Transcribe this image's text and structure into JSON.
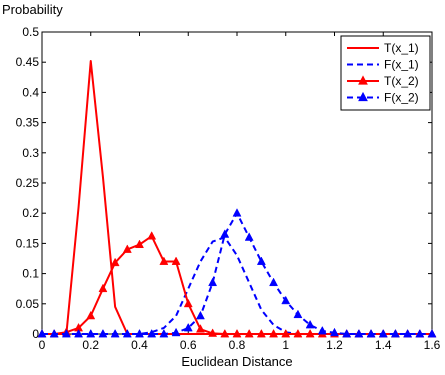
{
  "chart_data": {
    "type": "line",
    "title": "",
    "xlabel": "Euclidean Distance",
    "ylabel": "Probability",
    "xlim": [
      0,
      1.6
    ],
    "ylim": [
      0,
      0.5
    ],
    "xticks": [
      0,
      0.2,
      0.4,
      0.6,
      0.8,
      1,
      1.2,
      1.4,
      1.6
    ],
    "xtick_labels": [
      "0",
      "0.2",
      "0.4",
      "0.6",
      "0.8",
      "1",
      "1.2",
      "1.4",
      "1.6"
    ],
    "yticks": [
      0,
      0.05,
      0.1,
      0.15,
      0.2,
      0.25,
      0.3,
      0.35,
      0.4,
      0.45,
      0.5
    ],
    "ytick_labels": [
      "0",
      "0.05",
      "0.1",
      "0.15",
      "0.2",
      "0.25",
      "0.3",
      "0.35",
      "0.4",
      "0.45",
      "0.5"
    ],
    "grid": false,
    "legend_position": "top-right",
    "series": [
      {
        "name": "T(x_1)",
        "color": "#ff0000",
        "style": "solid",
        "marker": "none",
        "x": [
          0,
          0.05,
          0.1,
          0.15,
          0.2,
          0.25,
          0.3,
          0.35,
          0.4,
          0.45,
          0.5,
          0.55,
          0.6,
          0.65,
          0.7,
          0.75,
          0.8,
          0.85,
          0.9,
          0.95,
          1,
          1.05,
          1.1,
          1.15,
          1.2,
          1.25,
          1.3,
          1.35,
          1.4,
          1.45,
          1.5,
          1.55,
          1.6
        ],
        "y": [
          0,
          0,
          0,
          0.21,
          0.452,
          0.26,
          0.045,
          0,
          0,
          0,
          0,
          0,
          0,
          0,
          0,
          0,
          0,
          0,
          0,
          0,
          0,
          0,
          0,
          0,
          0,
          0,
          0,
          0,
          0,
          0,
          0,
          0,
          0
        ]
      },
      {
        "name": "F(x_1)",
        "color": "#0000ff",
        "style": "dashed",
        "marker": "none",
        "x": [
          0,
          0.05,
          0.1,
          0.15,
          0.2,
          0.25,
          0.3,
          0.35,
          0.4,
          0.45,
          0.5,
          0.55,
          0.6,
          0.65,
          0.7,
          0.75,
          0.8,
          0.85,
          0.9,
          0.95,
          1,
          1.05,
          1.1,
          1.15,
          1.2,
          1.25,
          1.3,
          1.35,
          1.4,
          1.45,
          1.5,
          1.55,
          1.6
        ],
        "y": [
          0,
          0,
          0,
          0,
          0,
          0,
          0,
          0,
          0,
          0.003,
          0.01,
          0.03,
          0.075,
          0.12,
          0.153,
          0.16,
          0.13,
          0.085,
          0.04,
          0.015,
          0.003,
          0,
          0,
          0,
          0,
          0,
          0,
          0,
          0,
          0,
          0,
          0,
          0
        ]
      },
      {
        "name": "T(x_2)",
        "color": "#ff0000",
        "style": "solid",
        "marker": "triangle",
        "x": [
          0,
          0.05,
          0.1,
          0.15,
          0.2,
          0.25,
          0.3,
          0.35,
          0.4,
          0.45,
          0.5,
          0.55,
          0.6,
          0.65,
          0.7,
          0.75,
          0.8,
          0.85,
          0.9,
          0.95,
          1,
          1.05,
          1.1,
          1.15,
          1.2,
          1.25,
          1.3,
          1.35,
          1.4,
          1.45,
          1.5,
          1.55,
          1.6
        ],
        "y": [
          0,
          0,
          0.003,
          0.01,
          0.03,
          0.075,
          0.118,
          0.14,
          0.148,
          0.162,
          0.12,
          0.12,
          0.05,
          0.008,
          0.001,
          0,
          0,
          0,
          0,
          0,
          0,
          0,
          0,
          0,
          0,
          0,
          0,
          0,
          0,
          0,
          0,
          0,
          0
        ]
      },
      {
        "name": "F(x_2)",
        "color": "#0000ff",
        "style": "dashed",
        "marker": "triangle",
        "x": [
          0,
          0.05,
          0.1,
          0.15,
          0.2,
          0.25,
          0.3,
          0.35,
          0.4,
          0.45,
          0.5,
          0.55,
          0.6,
          0.65,
          0.7,
          0.75,
          0.8,
          0.85,
          0.9,
          0.95,
          1,
          1.05,
          1.1,
          1.15,
          1.2,
          1.25,
          1.3,
          1.35,
          1.4,
          1.45,
          1.5,
          1.55,
          1.6
        ],
        "y": [
          0,
          0,
          0,
          0,
          0,
          0,
          0,
          0,
          0,
          0,
          0,
          0.002,
          0.01,
          0.03,
          0.085,
          0.165,
          0.2,
          0.16,
          0.12,
          0.085,
          0.055,
          0.032,
          0.015,
          0.005,
          0.002,
          0,
          0,
          0,
          0,
          0,
          0,
          0,
          0
        ]
      }
    ]
  }
}
